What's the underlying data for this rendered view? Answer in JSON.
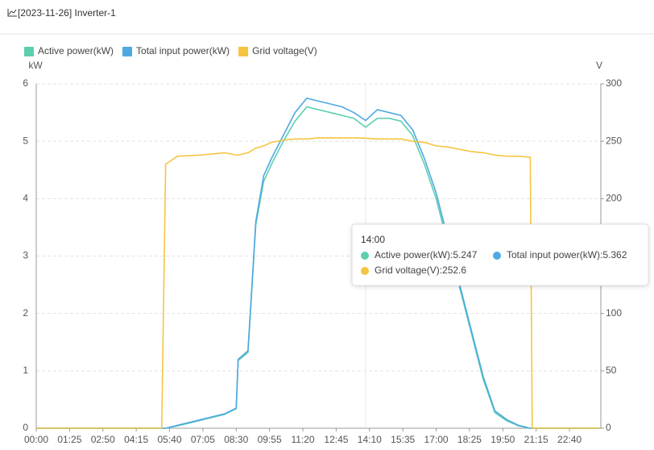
{
  "header": {
    "title": "[2023-11-26] Inverter-1"
  },
  "chart_data": {
    "type": "line",
    "ylabel": "kW",
    "y2label": "V",
    "xlim": [
      0,
      1440
    ],
    "xticks": [
      {
        "value": 0,
        "label": "00:00"
      },
      {
        "value": 85,
        "label": "01:25"
      },
      {
        "value": 170,
        "label": "02:50"
      },
      {
        "value": 255,
        "label": "04:15"
      },
      {
        "value": 340,
        "label": "05:40"
      },
      {
        "value": 425,
        "label": "07:05"
      },
      {
        "value": 510,
        "label": "08:30"
      },
      {
        "value": 595,
        "label": "09:55"
      },
      {
        "value": 680,
        "label": "11:20"
      },
      {
        "value": 765,
        "label": "12:45"
      },
      {
        "value": 850,
        "label": "14:10"
      },
      {
        "value": 935,
        "label": "15:35"
      },
      {
        "value": 1020,
        "label": "17:00"
      },
      {
        "value": 1105,
        "label": "18:25"
      },
      {
        "value": 1190,
        "label": "19:50"
      },
      {
        "value": 1275,
        "label": "21:15"
      },
      {
        "value": 1360,
        "label": "22:40"
      }
    ],
    "ylim": [
      0,
      6
    ],
    "yticks": [
      0,
      1,
      2,
      3,
      4,
      5,
      6
    ],
    "y2lim": [
      0,
      300
    ],
    "y2ticks": [
      0,
      50,
      100,
      150,
      200,
      250,
      300
    ],
    "grid": true,
    "x": [
      0,
      320,
      330,
      360,
      420,
      480,
      510,
      515,
      540,
      560,
      580,
      600,
      630,
      660,
      690,
      720,
      750,
      780,
      810,
      840,
      870,
      900,
      930,
      960,
      990,
      1020,
      1050,
      1080,
      1110,
      1140,
      1170,
      1200,
      1230,
      1260,
      1265,
      1439
    ],
    "series": [
      {
        "name": "Active power(kW)",
        "color": "#5ccfb0",
        "values": [
          0,
          0,
          0,
          0.04,
          0.14,
          0.24,
          0.34,
          1.18,
          1.32,
          3.55,
          4.3,
          4.6,
          5.0,
          5.35,
          5.6,
          5.55,
          5.5,
          5.45,
          5.4,
          5.247,
          5.4,
          5.4,
          5.35,
          5.1,
          4.6,
          4.0,
          3.2,
          2.45,
          1.65,
          0.85,
          0.27,
          0.13,
          0.04,
          0,
          0,
          0
        ]
      },
      {
        "name": "Total input power(kW)",
        "color": "#4ea8e2",
        "values": [
          0,
          0,
          0,
          0.05,
          0.15,
          0.25,
          0.35,
          1.2,
          1.35,
          3.6,
          4.4,
          4.7,
          5.1,
          5.5,
          5.75,
          5.7,
          5.65,
          5.6,
          5.5,
          5.362,
          5.55,
          5.5,
          5.45,
          5.2,
          4.7,
          4.1,
          3.3,
          2.5,
          1.7,
          0.9,
          0.3,
          0.15,
          0.05,
          0,
          0,
          0
        ]
      },
      {
        "name": "Grid voltage(V)",
        "color": "#f5c440",
        "axis": "y2",
        "values": [
          0,
          0,
          230,
          237,
          238,
          240,
          238,
          238,
          240,
          244,
          246,
          249,
          251,
          252,
          252,
          253,
          253,
          253,
          253,
          252.6,
          252,
          252,
          252,
          250,
          249,
          246,
          245,
          243,
          241,
          240,
          238,
          237,
          237,
          236,
          0,
          0
        ]
      }
    ]
  },
  "tooltip": {
    "x": 840,
    "title": "14:00",
    "items": [
      "Active power(kW):5.247",
      "Total input power(kW):5.362",
      "Grid voltage(V):252.6"
    ]
  }
}
